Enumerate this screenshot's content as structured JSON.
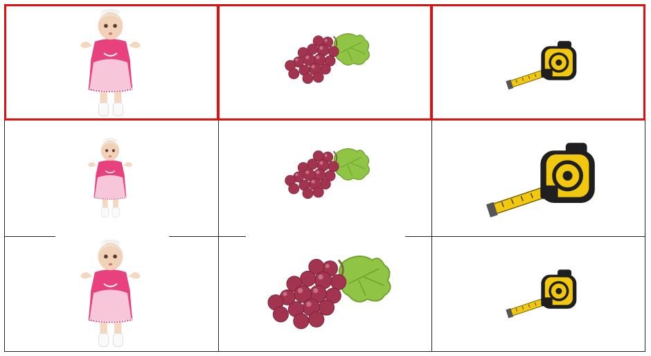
{
  "grid": {
    "rows": 3,
    "columns": 3,
    "highlighted_row": 1,
    "highlight_color": "#e01010",
    "line_color": "#222222"
  },
  "cells": [
    [
      "doll-icon",
      "grapes-icon",
      "tape-measure-icon"
    ],
    [
      "doll-icon",
      "grapes-icon",
      "tape-measure-icon"
    ],
    [
      "doll-icon",
      "grapes-icon",
      "tape-measure-icon"
    ]
  ]
}
